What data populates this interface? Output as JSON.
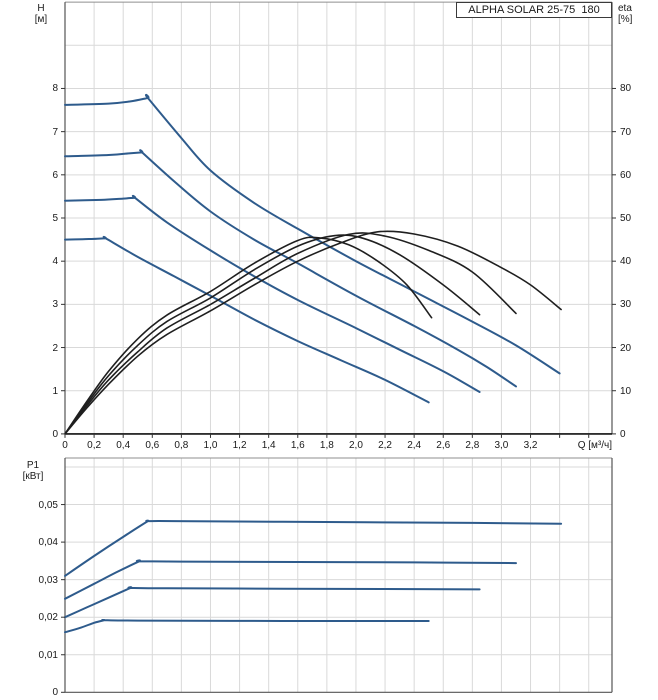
{
  "title": "ALPHA SOLAR 25-75  180",
  "labels": {
    "h_axis_line1": "H",
    "h_axis_line2": "[м]",
    "eta_axis_line1": "eta",
    "eta_axis_line2": "[%]",
    "p_axis_line1": "P1",
    "p_axis_line2": "[кВт]",
    "q_axis": "Q [м³/ч]"
  },
  "colors": {
    "curve_blue": "#2e5b8c",
    "curve_black": "#1f1f1f",
    "grid": "#d9d9d9",
    "frame": "#8f8f8f",
    "axis_dark": "#555555",
    "x_axis": "#111111",
    "tick": "#333333",
    "text": "#1a1a1a"
  },
  "chart_data": [
    {
      "type": "line",
      "title": "ALPHA SOLAR 25-75  180",
      "x_axis": {
        "unit": "Q [м³/ч]",
        "min": 0,
        "max": 3.76,
        "grid_step": 0.2,
        "grid_last": 3.6,
        "tick_values": [
          0,
          0.2,
          0.4,
          0.6,
          0.8,
          1.0,
          1.2,
          1.4,
          1.6,
          1.8,
          2.0,
          2.2,
          2.4,
          2.6,
          2.8,
          3.0,
          3.2
        ],
        "tick_labels": [
          "0",
          "0,2",
          "0,4",
          "0,6",
          "0,8",
          "1,0",
          "1,2",
          "1,4",
          "1,6",
          "1,8",
          "2,0",
          "2,2",
          "2,4",
          "2,6",
          "2,8",
          "3,0",
          "3,2"
        ],
        "tick_mark_values": [
          0,
          0.2,
          0.4,
          0.6,
          0.8,
          1.0,
          1.2,
          1.4,
          1.6,
          1.8,
          2.0,
          2.2,
          2.4,
          2.6,
          2.8,
          3.0,
          3.2,
          3.4,
          3.6
        ]
      },
      "y_left": {
        "unit": "H [м]",
        "min": 0,
        "max": 10,
        "grid_values": [
          1,
          2,
          3,
          4,
          5,
          6,
          7,
          8,
          9
        ],
        "tick_values": [
          0,
          1,
          2,
          3,
          4,
          5,
          6,
          7,
          8
        ],
        "tick_labels": [
          "0",
          "1",
          "2",
          "3",
          "4",
          "5",
          "6",
          "7",
          "8"
        ]
      },
      "y_right": {
        "unit": "eta [%]",
        "min": 0,
        "max": 100,
        "tick_values": [
          0,
          10,
          20,
          30,
          40,
          50,
          60,
          70,
          80
        ],
        "tick_labels": [
          "0",
          "10",
          "20",
          "30",
          "40",
          "50",
          "60",
          "70",
          "80"
        ]
      },
      "legend": "none",
      "series": [
        {
          "name": "head-curve-speed1",
          "axis": "left",
          "color_key": "curve_blue",
          "width": 2,
          "points": [
            [
              0,
              7.62
            ],
            [
              0.3,
              7.65
            ],
            [
              0.45,
              7.7
            ],
            [
              0.57,
              7.78
            ],
            [
              0.57,
              7.78
            ],
            [
              0.8,
              6.85
            ],
            [
              1.0,
              6.1
            ],
            [
              1.3,
              5.35
            ],
            [
              1.6,
              4.75
            ],
            [
              2.0,
              4.0
            ],
            [
              2.4,
              3.3
            ],
            [
              2.8,
              2.6
            ],
            [
              3.1,
              2.05
            ],
            [
              3.4,
              1.4
            ]
          ]
        },
        {
          "name": "head-curve-speed2",
          "axis": "left",
          "color_key": "curve_blue",
          "width": 2,
          "points": [
            [
              0,
              6.43
            ],
            [
              0.3,
              6.46
            ],
            [
              0.45,
              6.5
            ],
            [
              0.53,
              6.52
            ],
            [
              0.53,
              6.52
            ],
            [
              0.75,
              5.85
            ],
            [
              1.0,
              5.15
            ],
            [
              1.3,
              4.5
            ],
            [
              1.6,
              3.95
            ],
            [
              2.0,
              3.2
            ],
            [
              2.4,
              2.5
            ],
            [
              2.7,
              1.95
            ],
            [
              2.9,
              1.55
            ],
            [
              3.1,
              1.1
            ]
          ]
        },
        {
          "name": "head-curve-speed3",
          "axis": "left",
          "color_key": "curve_blue",
          "width": 2,
          "points": [
            [
              0,
              5.4
            ],
            [
              0.25,
              5.42
            ],
            [
              0.4,
              5.45
            ],
            [
              0.48,
              5.47
            ],
            [
              0.48,
              5.47
            ],
            [
              0.7,
              4.9
            ],
            [
              1.0,
              4.25
            ],
            [
              1.3,
              3.65
            ],
            [
              1.6,
              3.1
            ],
            [
              2.0,
              2.45
            ],
            [
              2.3,
              1.95
            ],
            [
              2.6,
              1.45
            ],
            [
              2.85,
              0.97
            ]
          ]
        },
        {
          "name": "head-curve-speed4",
          "axis": "left",
          "color_key": "curve_blue",
          "width": 2,
          "points": [
            [
              0,
              4.5
            ],
            [
              0.12,
              4.51
            ],
            [
              0.22,
              4.52
            ],
            [
              0.28,
              4.53
            ],
            [
              0.28,
              4.53
            ],
            [
              0.5,
              4.1
            ],
            [
              0.75,
              3.65
            ],
            [
              1.0,
              3.2
            ],
            [
              1.3,
              2.65
            ],
            [
              1.6,
              2.15
            ],
            [
              1.9,
              1.7
            ],
            [
              2.2,
              1.25
            ],
            [
              2.5,
              0.73
            ]
          ]
        },
        {
          "name": "efficiency-curve-speed1",
          "axis": "right",
          "color_key": "curve_black",
          "width": 1.6,
          "points": [
            [
              0,
              0
            ],
            [
              0.15,
              6
            ],
            [
              0.3,
              11.5
            ],
            [
              0.5,
              18
            ],
            [
              0.7,
              23
            ],
            [
              1.0,
              28.5
            ],
            [
              1.3,
              34.5
            ],
            [
              1.6,
              40
            ],
            [
              1.9,
              44.3
            ],
            [
              2.15,
              46.8
            ],
            [
              2.4,
              46.3
            ],
            [
              2.7,
              43.5
            ],
            [
              3.0,
              38.5
            ],
            [
              3.2,
              34.5
            ],
            [
              3.41,
              28.8
            ]
          ]
        },
        {
          "name": "efficiency-curve-speed2",
          "axis": "right",
          "color_key": "curve_black",
          "width": 1.6,
          "points": [
            [
              0,
              0
            ],
            [
              0.15,
              6.5
            ],
            [
              0.3,
              12.5
            ],
            [
              0.5,
              19
            ],
            [
              0.7,
              24.5
            ],
            [
              1.0,
              30
            ],
            [
              1.3,
              36
            ],
            [
              1.6,
              41.8
            ],
            [
              1.95,
              46.2
            ],
            [
              2.2,
              45.8
            ],
            [
              2.5,
              42.5
            ],
            [
              2.8,
              37.5
            ],
            [
              3.1,
              27.9
            ]
          ]
        },
        {
          "name": "efficiency-curve-speed3",
          "axis": "right",
          "color_key": "curve_black",
          "width": 1.6,
          "points": [
            [
              0,
              0
            ],
            [
              0.15,
              7
            ],
            [
              0.3,
              13.5
            ],
            [
              0.5,
              20.5
            ],
            [
              0.7,
              26
            ],
            [
              1.0,
              31.5
            ],
            [
              1.3,
              38
            ],
            [
              1.6,
              43.5
            ],
            [
              1.85,
              45.9
            ],
            [
              2.05,
              45.3
            ],
            [
              2.3,
              41.5
            ],
            [
              2.6,
              34.5
            ],
            [
              2.85,
              27.6
            ]
          ]
        },
        {
          "name": "efficiency-curve-speed4",
          "axis": "right",
          "color_key": "curve_black",
          "width": 1.6,
          "points": [
            [
              0,
              0
            ],
            [
              0.15,
              7.5
            ],
            [
              0.3,
              14.5
            ],
            [
              0.5,
              22
            ],
            [
              0.7,
              27.5
            ],
            [
              1.0,
              33
            ],
            [
              1.3,
              39.5
            ],
            [
              1.6,
              44.8
            ],
            [
              1.75,
              45.4
            ],
            [
              1.95,
              43.8
            ],
            [
              2.15,
              40
            ],
            [
              2.35,
              34.5
            ],
            [
              2.52,
              26.9
            ]
          ]
        }
      ]
    },
    {
      "type": "line",
      "title": "",
      "x_axis": {
        "unit": "",
        "min": 0,
        "max": 3.76,
        "grid_step": 0.2,
        "grid_last": 3.6,
        "tick_values": [],
        "tick_labels": [],
        "tick_mark_values": []
      },
      "y_left": {
        "unit": "P1 [кВт]",
        "min": 0,
        "max": 0.0624,
        "grid_values": [
          0.01,
          0.02,
          0.03,
          0.04,
          0.05,
          0.06
        ],
        "tick_values": [
          0,
          0.01,
          0.02,
          0.03,
          0.04,
          0.05
        ],
        "tick_labels": [
          "0",
          "0,01",
          "0,02",
          "0,03",
          "0,04",
          "0,05"
        ]
      },
      "legend": "none",
      "series": [
        {
          "name": "power-curve-speed1",
          "axis": "left",
          "color_key": "curve_blue",
          "width": 2,
          "points": [
            [
              0,
              0.031
            ],
            [
              0.2,
              0.0363
            ],
            [
              0.4,
              0.0414
            ],
            [
              0.5,
              0.0439
            ],
            [
              0.57,
              0.0456
            ],
            [
              0.57,
              0.0456
            ],
            [
              0.75,
              0.0456
            ],
            [
              1.5,
              0.0454
            ],
            [
              2.5,
              0.0452
            ],
            [
              3.41,
              0.0449
            ]
          ]
        },
        {
          "name": "power-curve-speed2",
          "axis": "left",
          "color_key": "curve_blue",
          "width": 2,
          "points": [
            [
              0,
              0.0249
            ],
            [
              0.2,
              0.0289
            ],
            [
              0.35,
              0.0319
            ],
            [
              0.51,
              0.0349
            ],
            [
              0.51,
              0.0349
            ],
            [
              0.8,
              0.0348
            ],
            [
              1.6,
              0.0347
            ],
            [
              2.4,
              0.0346
            ],
            [
              3.1,
              0.0344
            ]
          ]
        },
        {
          "name": "power-curve-speed3",
          "axis": "left",
          "color_key": "curve_blue",
          "width": 2,
          "points": [
            [
              0,
              0.02
            ],
            [
              0.15,
              0.0226
            ],
            [
              0.3,
              0.0252
            ],
            [
              0.45,
              0.0278
            ],
            [
              0.45,
              0.0278
            ],
            [
              0.7,
              0.0277
            ],
            [
              1.5,
              0.0276
            ],
            [
              2.2,
              0.0275
            ],
            [
              2.85,
              0.0274
            ]
          ]
        },
        {
          "name": "power-curve-speed4",
          "axis": "left",
          "color_key": "curve_blue",
          "width": 2,
          "points": [
            [
              0,
              0.016
            ],
            [
              0.1,
              0.0171
            ],
            [
              0.2,
              0.0185
            ],
            [
              0.27,
              0.0192
            ],
            [
              0.27,
              0.0192
            ],
            [
              0.5,
              0.0191
            ],
            [
              1.5,
              0.019
            ],
            [
              2.5,
              0.019
            ]
          ]
        }
      ]
    }
  ]
}
